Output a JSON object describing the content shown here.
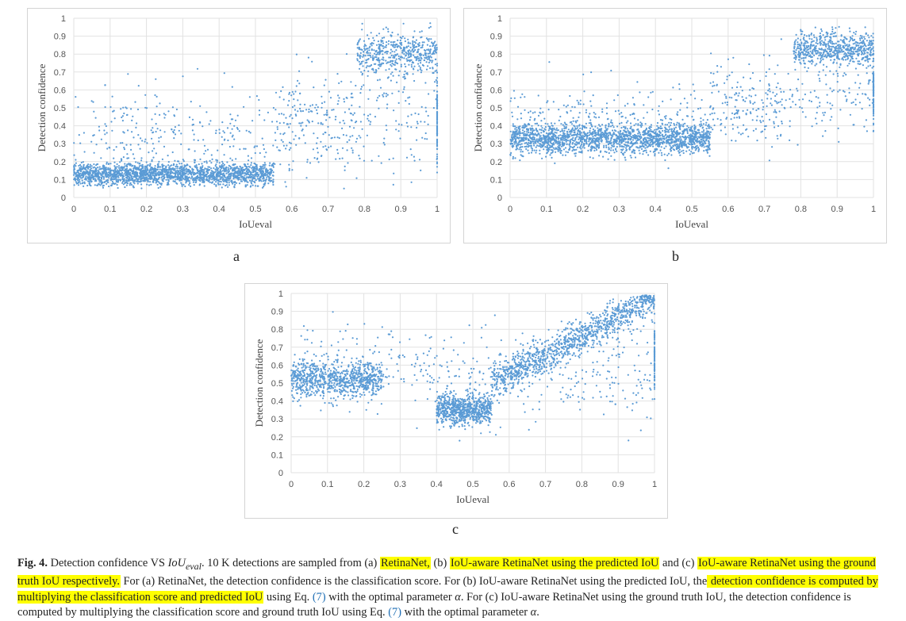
{
  "figure": {
    "chart_data": [
      {
        "type": "scatter",
        "panel": "a",
        "title": "",
        "xlabel": "IoUeval",
        "ylabel": "Detection confidence",
        "xlim": [
          0,
          1
        ],
        "ylim": [
          0,
          1
        ],
        "x_ticks": [
          "0",
          "0.1",
          "0.2",
          "0.3",
          "0.4",
          "0.5",
          "0.6",
          "0.7",
          "0.8",
          "0.9",
          "1"
        ],
        "y_ticks": [
          "0",
          "0.1",
          "0.2",
          "0.3",
          "0.4",
          "0.5",
          "0.6",
          "0.7",
          "0.8",
          "0.9",
          "1"
        ],
        "grid": true,
        "marker_color": "#5b9bd5",
        "n_points": 10000,
        "clusters": [
          {
            "x": [
              0.0,
              0.55
            ],
            "y_mean": 0.13,
            "y_spread": 0.05,
            "weight": 0.62
          },
          {
            "x": [
              0.0,
              0.8
            ],
            "y_mean": 0.35,
            "y_spread": 0.22,
            "weight": 0.12
          },
          {
            "x": [
              0.78,
              1.0
            ],
            "y_mean": 0.8,
            "y_spread": 0.1,
            "weight": 0.16
          },
          {
            "x": [
              0.55,
              1.0
            ],
            "y_mean": 0.45,
            "y_spread": 0.25,
            "weight": 0.07
          },
          {
            "x": [
              1.0,
              1.0
            ],
            "y_mean": 0.45,
            "y_spread": 0.2,
            "weight": 0.03
          }
        ]
      },
      {
        "type": "scatter",
        "panel": "b",
        "title": "",
        "xlabel": "IoUeval",
        "ylabel": "Detection confidence",
        "xlim": [
          0,
          1
        ],
        "ylim": [
          0,
          1
        ],
        "x_ticks": [
          "0",
          "0.1",
          "0.2",
          "0.3",
          "0.4",
          "0.5",
          "0.6",
          "0.7",
          "0.8",
          "0.9",
          "1"
        ],
        "y_ticks": [
          "0",
          "0.1",
          "0.2",
          "0.3",
          "0.4",
          "0.5",
          "0.6",
          "0.7",
          "0.8",
          "0.9",
          "1"
        ],
        "grid": true,
        "marker_color": "#5b9bd5",
        "n_points": 10000,
        "clusters": [
          {
            "x": [
              0.0,
              0.55
            ],
            "y_mean": 0.33,
            "y_spread": 0.07,
            "weight": 0.6
          },
          {
            "x": [
              0.0,
              0.75
            ],
            "y_mean": 0.45,
            "y_spread": 0.15,
            "weight": 0.1
          },
          {
            "x": [
              0.78,
              1.0
            ],
            "y_mean": 0.83,
            "y_spread": 0.08,
            "weight": 0.2
          },
          {
            "x": [
              0.55,
              1.0
            ],
            "y_mean": 0.55,
            "y_spread": 0.18,
            "weight": 0.07
          },
          {
            "x": [
              1.0,
              1.0
            ],
            "y_mean": 0.6,
            "y_spread": 0.15,
            "weight": 0.03
          }
        ]
      },
      {
        "type": "scatter",
        "panel": "c",
        "title": "",
        "xlabel": "IoUeval",
        "ylabel": "Detection confidence",
        "xlim": [
          0,
          1
        ],
        "ylim": [
          0,
          1
        ],
        "x_ticks": [
          "0",
          "0.1",
          "0.2",
          "0.3",
          "0.4",
          "0.5",
          "0.6",
          "0.7",
          "0.8",
          "0.9",
          "1"
        ],
        "y_ticks": [
          "0",
          "0.1",
          "0.2",
          "0.3",
          "0.4",
          "0.5",
          "0.6",
          "0.7",
          "0.8",
          "0.9",
          "1"
        ],
        "grid": true,
        "marker_color": "#5b9bd5",
        "n_points": 10000,
        "clusters": [
          {
            "x": [
              0.0,
              0.25
            ],
            "y_mean": 0.52,
            "y_spread": 0.08,
            "weight": 0.25
          },
          {
            "x": [
              0.4,
              0.55
            ],
            "y_mean": 0.35,
            "y_spread": 0.07,
            "weight": 0.22
          },
          {
            "x": [
              0.55,
              1.0
            ],
            "y_mean": 0.82,
            "y_spread": 0.08,
            "weight": 0.35,
            "trend": [
              0.5,
              0.97
            ]
          },
          {
            "x": [
              0.0,
              1.0
            ],
            "y_mean": 0.55,
            "y_spread": 0.2,
            "weight": 0.15
          },
          {
            "x": [
              1.0,
              1.0
            ],
            "y_mean": 0.65,
            "y_spread": 0.15,
            "weight": 0.03
          }
        ]
      }
    ],
    "panel_labels": {
      "a": "a",
      "b": "b",
      "c": "c"
    }
  },
  "caption": {
    "label": "Fig. 4.",
    "p1": " Detection confidence VS ",
    "iou": "IoU",
    "iou_sub": "eval",
    "p2": ". 10 K detections are sampled from (a) ",
    "h1": "RetinaNet,",
    "p3": " (b) ",
    "h2": "IoU-aware RetinaNet using the predicted IoU",
    "p4": " and (c) ",
    "h3": "IoU-aware RetinaNet using the ground truth IoU respectively.",
    "p5": " For (a) RetinaNet, the detection confidence is the classification score. For (b) IoU-aware RetinaNet using the predicted IoU, the",
    "h4": " detection confidence is computed by multiplying the classification score and predicted IoU",
    "p6": " using Eq. ",
    "ref1": "(7)",
    "p7": " with the optimal parameter ",
    "alpha": "α",
    "p8": ". For (c) IoU-aware RetinaNet using the ground truth IoU, the detection confidence is computed by multiplying the classification score and ground truth IoU using Eq. ",
    "ref2": "(7)",
    "p9": " with the optimal parameter ",
    "alpha2": "α",
    "p10": "."
  }
}
